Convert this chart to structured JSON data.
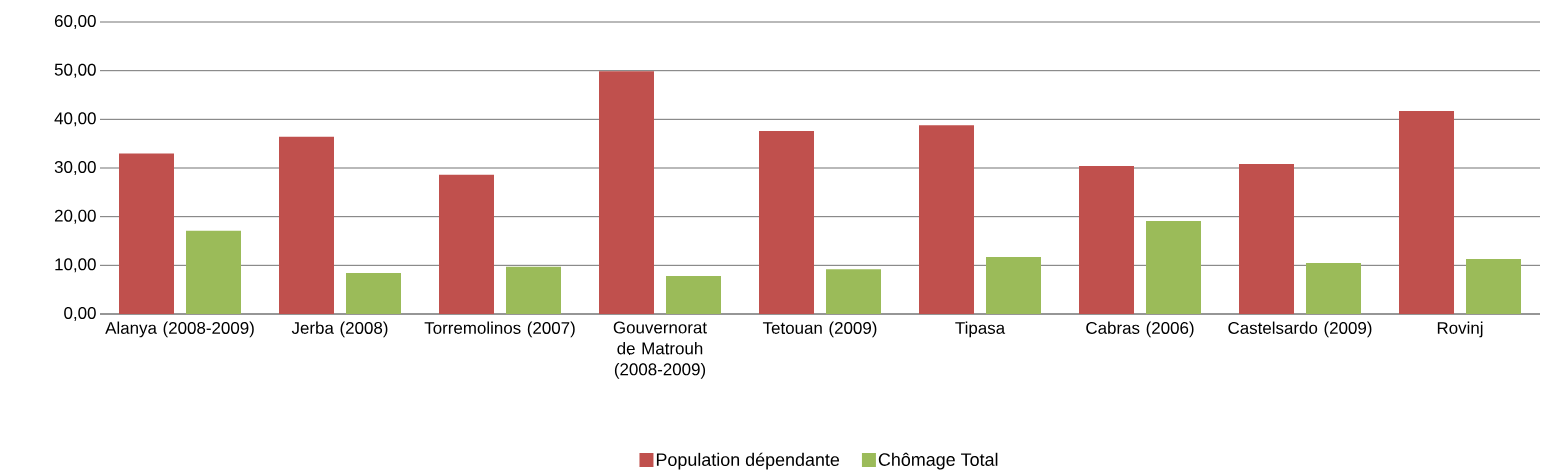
{
  "chart_data": {
    "type": "bar",
    "categories": [
      "Alanya (2008-2009)",
      "Jerba (2008)",
      "Torremolinos (2007)",
      "Gouvernorat de Matrouh (2008-2009)",
      "Tetouan (2009)",
      "Tipasa",
      "Cabras (2006)",
      "Castelsardo (2009)",
      "Rovinj"
    ],
    "series": [
      {
        "name": "Population dépendante",
        "color": "#c0504d",
        "values": [
          33.0,
          36.4,
          28.6,
          49.9,
          37.6,
          38.8,
          30.4,
          30.8,
          41.7
        ]
      },
      {
        "name": "Chômage Total",
        "color": "#9bbb59",
        "values": [
          17.1,
          8.4,
          9.7,
          7.8,
          9.2,
          11.7,
          19.1,
          10.5,
          11.3
        ]
      }
    ],
    "ylim": [
      0,
      60
    ],
    "yticks": [
      {
        "value": 0,
        "label": "0,00"
      },
      {
        "value": 10,
        "label": "10,00"
      },
      {
        "value": 20,
        "label": "20,00"
      },
      {
        "value": 30,
        "label": "30,00"
      },
      {
        "value": 40,
        "label": "40,00"
      },
      {
        "value": 50,
        "label": "50,00"
      },
      {
        "value": 60,
        "label": "60,00"
      }
    ],
    "grid": "y",
    "legend": "bottom"
  }
}
